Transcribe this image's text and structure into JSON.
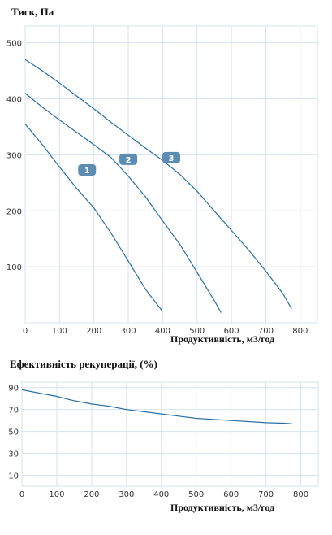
{
  "colors": {
    "line": "#2a6fa3",
    "grid": "#d7e3f0",
    "badge": "#5b8db3"
  },
  "chart_data": [
    {
      "type": "line",
      "title": "Тиск, Па",
      "xlabel": "Продуктивність, м3/год",
      "xlim": [
        0,
        850
      ],
      "ylim": [
        0,
        530
      ],
      "xticks": [
        0,
        100,
        200,
        300,
        400,
        500,
        600,
        700,
        800
      ],
      "yticks": [
        100,
        200,
        300,
        400,
        500
      ],
      "grid": true,
      "series": [
        {
          "label": "1",
          "label_at": [
            180,
            273
          ],
          "points": [
            [
              0,
              355
            ],
            [
              50,
              318
            ],
            [
              100,
              278
            ],
            [
              150,
              240
            ],
            [
              200,
              205
            ],
            [
              250,
              160
            ],
            [
              300,
              110
            ],
            [
              350,
              60
            ],
            [
              400,
              20
            ]
          ]
        },
        {
          "label": "2",
          "label_at": [
            300,
            292
          ],
          "points": [
            [
              0,
              410
            ],
            [
              50,
              385
            ],
            [
              100,
              362
            ],
            [
              150,
              340
            ],
            [
              200,
              318
            ],
            [
              250,
              295
            ],
            [
              300,
              262
            ],
            [
              350,
              225
            ],
            [
              400,
              182
            ],
            [
              450,
              140
            ],
            [
              500,
              90
            ],
            [
              550,
              40
            ],
            [
              570,
              18
            ]
          ]
        },
        {
          "label": "3",
          "label_at": [
            425,
            295
          ],
          "points": [
            [
              0,
              470
            ],
            [
              50,
              450
            ],
            [
              100,
              428
            ],
            [
              150,
              405
            ],
            [
              200,
              382
            ],
            [
              250,
              358
            ],
            [
              300,
              335
            ],
            [
              350,
              312
            ],
            [
              400,
              290
            ],
            [
              450,
              265
            ],
            [
              500,
              235
            ],
            [
              550,
              200
            ],
            [
              600,
              165
            ],
            [
              650,
              130
            ],
            [
              700,
              92
            ],
            [
              750,
              52
            ],
            [
              775,
              25
            ]
          ]
        }
      ]
    },
    {
      "type": "line",
      "title": "Ефективність рекуперації, (%)",
      "xlabel": "Продуктивність, м3/год",
      "xlim": [
        0,
        850
      ],
      "ylim": [
        0,
        95
      ],
      "xticks": [
        0,
        100,
        200,
        300,
        400,
        500,
        600,
        700,
        800
      ],
      "yticks": [
        10,
        30,
        50,
        70,
        90
      ],
      "grid": true,
      "series": [
        {
          "points": [
            [
              0,
              88
            ],
            [
              50,
              85
            ],
            [
              100,
              82
            ],
            [
              150,
              78
            ],
            [
              200,
              75
            ],
            [
              250,
              73
            ],
            [
              300,
              70
            ],
            [
              350,
              68
            ],
            [
              400,
              66
            ],
            [
              450,
              64
            ],
            [
              500,
              62
            ],
            [
              550,
              61
            ],
            [
              600,
              60
            ],
            [
              650,
              59
            ],
            [
              700,
              58
            ],
            [
              750,
              57.5
            ],
            [
              775,
              57
            ]
          ]
        }
      ]
    }
  ]
}
